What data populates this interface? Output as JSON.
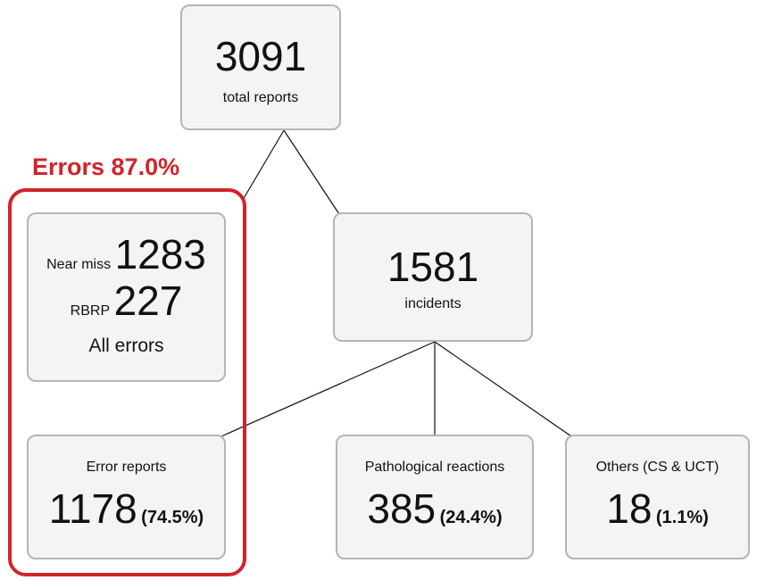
{
  "group_label": "Errors 87.0%",
  "nodes": [
    {
      "value": 3091,
      "label": "total reports"
    },
    {
      "near_miss_label": "Near miss",
      "near_miss_value": 1283,
      "rbrp_label": "RBRP",
      "rbrp_value": 227,
      "label": "All errors"
    },
    {
      "value": 1581,
      "label": "incidents"
    },
    {
      "label": "Error reports",
      "value": 1178,
      "share": "(74.5%)"
    },
    {
      "label": "Pathological reactions",
      "value": 385,
      "share": "(24.4%)"
    },
    {
      "label": "Others (CS & UCT)",
      "value": 18,
      "share": "(1.1%)"
    }
  ]
}
